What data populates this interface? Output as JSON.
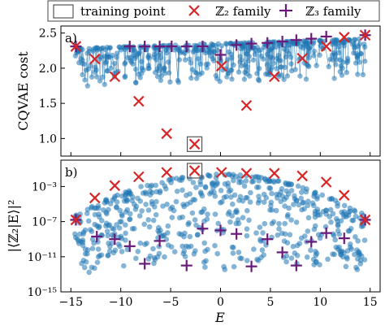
{
  "colors": {
    "scatter": "#1f77b4",
    "z2": "#d62728",
    "z3": "#6a1b7a",
    "frame": "#000000"
  },
  "legend": {
    "training": "training point",
    "z2": "ℤ₂ family",
    "z3": "ℤ₃ family"
  },
  "chart_data": [
    {
      "type": "scatter",
      "panel_label": "a)",
      "ylabel": "CQVAE cost",
      "xlabel": "",
      "xlim": [
        -16,
        16
      ],
      "ylim": [
        0.75,
        2.6
      ],
      "yticks": [
        1.0,
        1.5,
        2.0,
        2.5
      ],
      "yticklabels": [
        "1.0",
        "1.5",
        "2.0",
        "2.5"
      ],
      "training_point": {
        "x": -2.6,
        "y": 0.92
      },
      "series": [
        {
          "name": "ℤ₂ family",
          "marker": "x",
          "x": [
            -14.5,
            -12.6,
            -10.6,
            -8.2,
            -5.4,
            -2.6,
            0.1,
            2.6,
            5.4,
            8.2,
            10.6,
            12.4,
            14.5
          ],
          "y": [
            2.31,
            2.13,
            1.88,
            1.53,
            1.07,
            0.92,
            2.03,
            1.47,
            1.88,
            2.14,
            2.31,
            2.44,
            2.47
          ]
        },
        {
          "name": "ℤ₃ family",
          "marker": "+",
          "x": [
            -14.5,
            -9.1,
            -7.6,
            -6.1,
            -4.9,
            -3.4,
            -1.8,
            0.0,
            1.6,
            3.1,
            4.7,
            6.2,
            7.6,
            9.1,
            10.6,
            14.5
          ],
          "y": [
            2.31,
            2.31,
            2.31,
            2.31,
            2.31,
            2.31,
            2.31,
            2.19,
            2.33,
            2.35,
            2.36,
            2.38,
            2.4,
            2.42,
            2.45,
            2.47
          ]
        }
      ]
    },
    {
      "type": "scatter",
      "panel_label": "b)",
      "ylabel": "|⟨ℤ₂|E⟩|²",
      "xlabel": "E",
      "xlim": [
        -16,
        16
      ],
      "ylim_log10": [
        -15,
        0
      ],
      "yticks_log10": [
        -15,
        -11,
        -7,
        -3
      ],
      "yticklabels": [
        "10⁻¹⁵",
        "10⁻¹¹",
        "10⁻⁷",
        "10⁻³"
      ],
      "xticks": [
        -15,
        -10,
        -5,
        0,
        5,
        10,
        15
      ],
      "xticklabels": [
        "−15",
        "−10",
        "−5",
        "0",
        "5",
        "10",
        "15"
      ],
      "training_point": {
        "x": -2.6,
        "y_log10": -1.2
      },
      "series": [
        {
          "name": "ℤ₂ family",
          "marker": "x",
          "x": [
            -14.5,
            -12.6,
            -10.6,
            -8.2,
            -5.4,
            -2.6,
            0.1,
            2.6,
            5.4,
            8.2,
            10.6,
            12.4,
            14.5
          ],
          "y_log10": [
            -6.8,
            -4.3,
            -2.9,
            -1.9,
            -1.4,
            -1.2,
            -1.4,
            -1.5,
            -1.5,
            -1.8,
            -2.5,
            -4.0,
            -6.8
          ]
        },
        {
          "name": "ℤ₃ family",
          "marker": "+",
          "x": [
            -14.5,
            -12.4,
            -10.6,
            -9.1,
            -7.6,
            -6.1,
            -3.4,
            -1.8,
            0.0,
            1.6,
            3.1,
            4.7,
            6.2,
            7.6,
            9.1,
            10.6,
            12.4,
            14.5
          ],
          "y_log10": [
            -6.8,
            -8.7,
            -9.0,
            -9.8,
            -11.8,
            -9.2,
            -12.0,
            -7.8,
            -8.0,
            -8.4,
            -12.1,
            -9.0,
            -10.5,
            -12.0,
            -9.3,
            -8.3,
            -8.9,
            -6.8
          ]
        }
      ]
    }
  ]
}
